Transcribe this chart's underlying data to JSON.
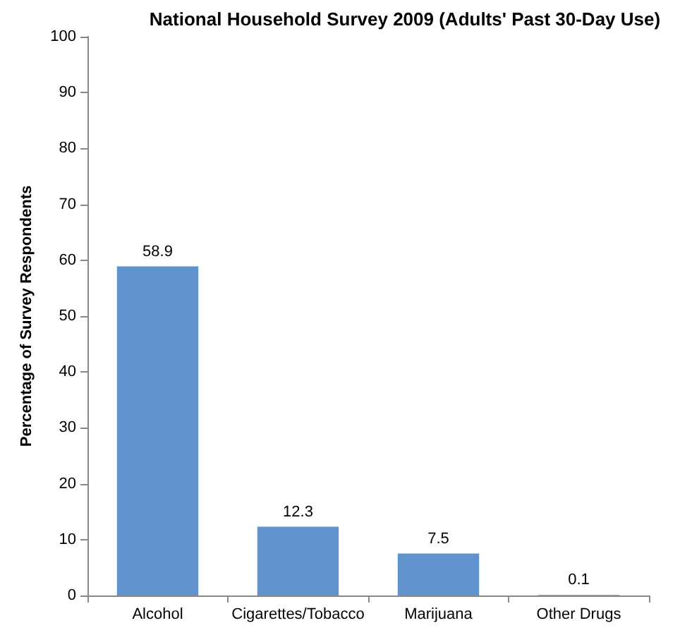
{
  "chart_data": {
    "type": "bar",
    "title": "National Household Survey 2009 (Adults' Past 30-Day Use)",
    "ylabel": "Percentage of Survey Respondents",
    "categories": [
      "Alcohol",
      "Cigarettes/Tobacco",
      "Marijuana",
      "Other Drugs"
    ],
    "values": [
      58.9,
      12.3,
      7.5,
      0.1
    ],
    "color": "#6193cf",
    "data_labels": true,
    "ylim": [
      0,
      100
    ],
    "yticks": [
      0,
      10,
      20,
      30,
      40,
      50,
      60,
      70,
      80,
      90,
      100
    ]
  }
}
